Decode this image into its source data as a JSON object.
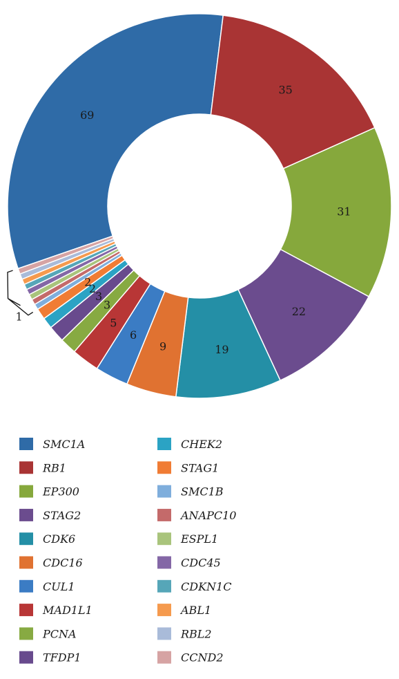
{
  "chart_data": {
    "type": "pie",
    "title": "",
    "hole": true,
    "legend_placement": "bottom",
    "slices": [
      {
        "name": "SMC1A",
        "value": 69,
        "color": "#2F6BA7",
        "label": "69"
      },
      {
        "name": "RB1",
        "value": 35,
        "color": "#A93434",
        "label": "35"
      },
      {
        "name": "EP300",
        "value": 31,
        "color": "#86A83C",
        "label": "31"
      },
      {
        "name": "STAG2",
        "value": 22,
        "color": "#6B4C8E",
        "label": "22"
      },
      {
        "name": "CDK6",
        "value": 19,
        "color": "#248FA6",
        "label": "19"
      },
      {
        "name": "CDC16",
        "value": 9,
        "color": "#E07231",
        "label": "9"
      },
      {
        "name": "CUL1",
        "value": 6,
        "color": "#3B7CC4",
        "label": "6"
      },
      {
        "name": "MAD1L1",
        "value": 5,
        "color": "#B83636",
        "label": "5"
      },
      {
        "name": "PCNA",
        "value": 3,
        "color": "#87AA42",
        "label": "3"
      },
      {
        "name": "TFDP1",
        "value": 3,
        "color": "#684A8D",
        "label": "3"
      },
      {
        "name": "CHEK2",
        "value": 2,
        "color": "#2BA3C4",
        "label": "2"
      },
      {
        "name": "STAG1",
        "value": 2,
        "color": "#F07C34",
        "label": "2"
      },
      {
        "name": "SMC1B",
        "value": 1,
        "color": "#7FAEDC",
        "label": ""
      },
      {
        "name": "ANAPC10",
        "value": 1,
        "color": "#C46A6A",
        "label": ""
      },
      {
        "name": "ESPL1",
        "value": 1,
        "color": "#A9C47C",
        "label": ""
      },
      {
        "name": "CDC45",
        "value": 1,
        "color": "#8467A6",
        "label": ""
      },
      {
        "name": "CDKN1C",
        "value": 1,
        "color": "#56A6B8",
        "label": ""
      },
      {
        "name": "ABL1",
        "value": 1,
        "color": "#F59A4E",
        "label": ""
      },
      {
        "name": "RBL2",
        "value": 1,
        "color": "#A9BBD9",
        "label": ""
      },
      {
        "name": "CCND2",
        "value": 1,
        "color": "#D6A3A3",
        "label": ""
      }
    ],
    "bracket_label": "1"
  }
}
